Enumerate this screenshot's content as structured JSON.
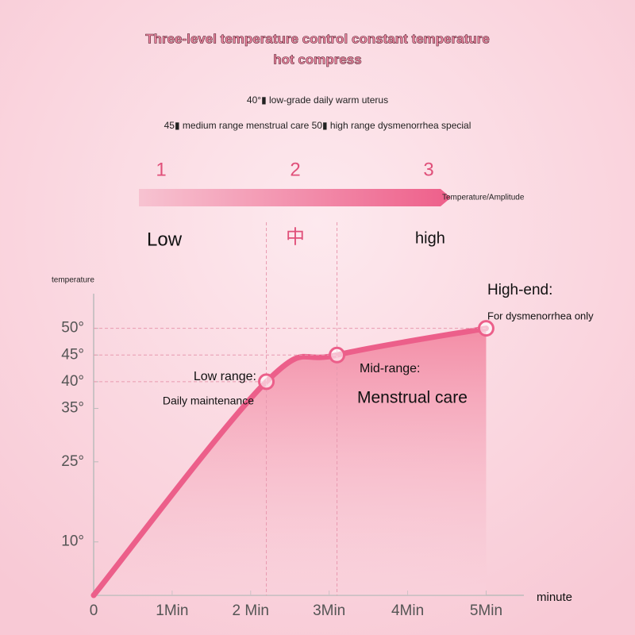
{
  "title": [
    "Three-level temperature control constant temperature",
    "hot compress"
  ],
  "subtitle": [
    "40°▮ low-grade daily warm uterus",
    "45▮ medium range menstrual care 50▮ high range dysmenorrhea special"
  ],
  "levels": [
    "1",
    "2",
    "3"
  ],
  "level_bar_label": "Temperature/Amplitude",
  "level_names": [
    "Low",
    "中",
    "high"
  ],
  "chart_data": {
    "type": "line",
    "ylabel": "temperature",
    "xlabel": "minute",
    "x": [
      0,
      2.2,
      3.1,
      5
    ],
    "values": [
      0,
      40,
      45,
      50
    ],
    "color": "#ec5f8a",
    "xlim": [
      0,
      5.4
    ],
    "ylim": [
      0,
      55
    ],
    "xticks": [
      0,
      {
        "value": 1,
        "label": "1Min"
      },
      {
        "value": 2,
        "label": "2 Min"
      },
      {
        "value": 3,
        "label": "3Min"
      },
      {
        "value": 4,
        "label": "4Min"
      },
      {
        "value": 5,
        "label": "5Min"
      }
    ],
    "yticks": [
      {
        "value": 10,
        "label": "10°"
      },
      {
        "value": 25,
        "label": "25°"
      },
      {
        "value": 35,
        "label": "35°"
      },
      {
        "value": 40,
        "label": "40°"
      },
      {
        "value": 45,
        "label": "45°"
      },
      {
        "value": 50,
        "label": "50°"
      }
    ],
    "annotations": [
      {
        "title": "Low range:",
        "text": "Daily maintenance"
      },
      {
        "title": "Mid-range:",
        "text": "Menstrual care"
      },
      {
        "title": "High-end:",
        "text": "For dysmenorrhea only"
      }
    ]
  }
}
